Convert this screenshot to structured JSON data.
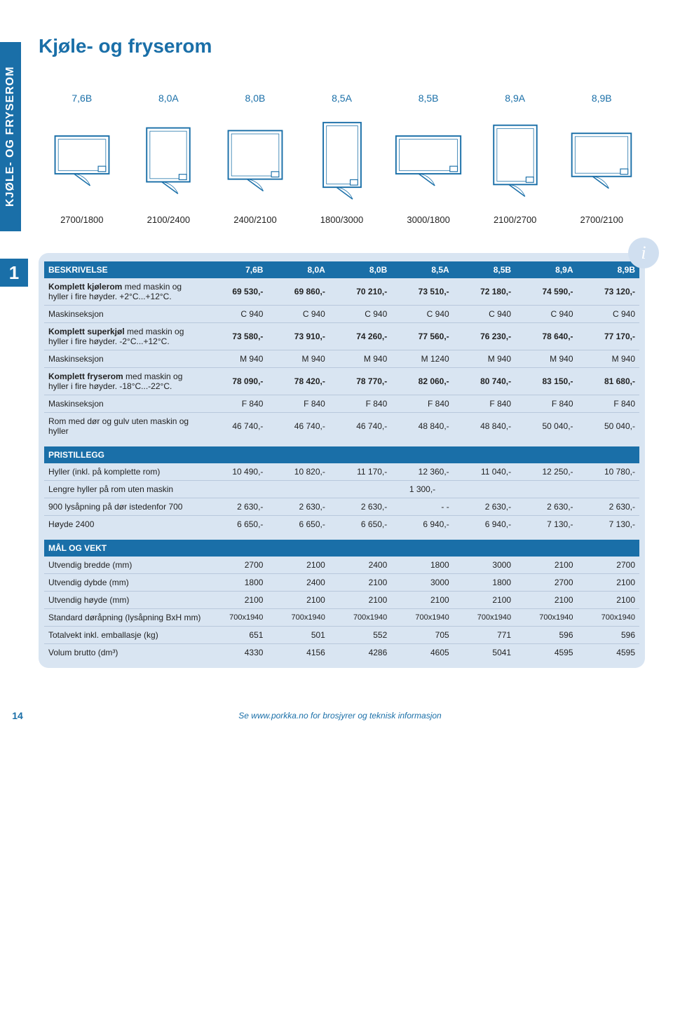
{
  "side_tab": "KJØLE- OG FRYSEROM",
  "chapter": "1",
  "title": "Kjøle- og fryserom",
  "info_badge": "i",
  "page_num": "14",
  "footer": "Se www.porkka.no for brosjyrer og teknisk informasjon",
  "colors": {
    "brand": "#1a6fa8",
    "card_bg": "#d9e5f2",
    "rule": "#b8c8dc"
  },
  "diagrams": {
    "labels": [
      "7,6B",
      "8,0A",
      "8,0B",
      "8,5A",
      "8,5B",
      "8,9A",
      "8,9B"
    ],
    "dims": [
      "2700/1800",
      "2100/2400",
      "2400/2100",
      "1800/3000",
      "3000/1800",
      "2100/2700",
      "2700/2100"
    ],
    "aspect": [
      [
        100,
        70
      ],
      [
        80,
        100
      ],
      [
        100,
        90
      ],
      [
        70,
        120
      ],
      [
        120,
        70
      ],
      [
        80,
        110
      ],
      [
        110,
        80
      ]
    ]
  },
  "sections": {
    "beskrivelse": {
      "title": "BESKRIVELSE",
      "cols": [
        "7,6B",
        "8,0A",
        "8,0B",
        "8,5A",
        "8,5B",
        "8,9A",
        "8,9B"
      ],
      "rows": [
        {
          "label": "Komplett kjølerom",
          "note": " med maskin og hyller i fire høyder. +2°C...+12°C.",
          "bold": true,
          "vals": [
            "69 530,-",
            "69 860,-",
            "70 210,-",
            "73 510,-",
            "72 180,-",
            "74 590,-",
            "73 120,-"
          ]
        },
        {
          "label": "Maskinseksjon",
          "note": "",
          "bold": false,
          "vals": [
            "C 940",
            "C 940",
            "C 940",
            "C 940",
            "C 940",
            "C 940",
            "C 940"
          ]
        },
        {
          "label": "Komplett superkjøl",
          "note": " med maskin og hyller i fire høyder. -2°C...+12°C.",
          "bold": true,
          "vals": [
            "73 580,-",
            "73 910,-",
            "74 260,-",
            "77 560,-",
            "76 230,-",
            "78 640,-",
            "77 170,-"
          ]
        },
        {
          "label": "Maskinseksjon",
          "note": "",
          "bold": false,
          "vals": [
            "M 940",
            "M 940",
            "M 940",
            "M 1240",
            "M 940",
            "M 940",
            "M 940"
          ]
        },
        {
          "label": "Komplett fryserom",
          "note": " med maskin og hyller i fire høyder. -18°C...-22°C.",
          "bold": true,
          "vals": [
            "78 090,-",
            "78 420,-",
            "78 770,-",
            "82 060,-",
            "80 740,-",
            "83 150,-",
            "81 680,-"
          ]
        },
        {
          "label": "Maskinseksjon",
          "note": "",
          "bold": false,
          "vals": [
            "F 840",
            "F 840",
            "F 840",
            "F 840",
            "F 840",
            "F 840",
            "F 840"
          ]
        },
        {
          "label": "Rom med dør og gulv uten maskin og hyller",
          "note": "",
          "bold": false,
          "vals": [
            "46 740,-",
            "46 740,-",
            "46 740,-",
            "48 840,-",
            "48 840,-",
            "50 040,-",
            "50 040,-"
          ]
        }
      ]
    },
    "pristillegg": {
      "title": "PRISTILLEGG",
      "rows": [
        {
          "label": "Hyller (inkl. på komplette rom)",
          "vals": [
            "10 490,-",
            "10 820,-",
            "11 170,-",
            "12 360,-",
            "11 040,-",
            "12 250,-",
            "10 780,-"
          ]
        },
        {
          "label": "Lengre hyller på rom uten maskin",
          "vals": [
            "",
            "",
            "",
            "1 300,-",
            "",
            "",
            ""
          ],
          "center": true
        },
        {
          "label": "900 lysåpning på dør istedenfor 700",
          "vals": [
            "2 630,-",
            "2 630,-",
            "2 630,-",
            "- -",
            "2 630,-",
            "2 630,-",
            "2 630,-"
          ]
        },
        {
          "label": "Høyde 2400",
          "vals": [
            "6 650,-",
            "6 650,-",
            "6 650,-",
            "6 940,-",
            "6 940,-",
            "7 130,-",
            "7 130,-"
          ]
        }
      ]
    },
    "mal": {
      "title": "MÅL OG VEKT",
      "rows": [
        {
          "label": "Utvendig bredde (mm)",
          "vals": [
            "2700",
            "2100",
            "2400",
            "1800",
            "3000",
            "2100",
            "2700"
          ]
        },
        {
          "label": "Utvendig dybde (mm)",
          "vals": [
            "1800",
            "2400",
            "2100",
            "3000",
            "1800",
            "2700",
            "2100"
          ]
        },
        {
          "label": "Utvendig høyde (mm)",
          "vals": [
            "2100",
            "2100",
            "2100",
            "2100",
            "2100",
            "2100",
            "2100"
          ]
        },
        {
          "label": "Standard døråpning (lysåpning BxH mm)",
          "vals": [
            "700x1940",
            "700x1940",
            "700x1940",
            "700x1940",
            "700x1940",
            "700x1940",
            "700x1940"
          ],
          "small": true
        },
        {
          "label": "Totalvekt inkl. emballasje (kg)",
          "vals": [
            "651",
            "501",
            "552",
            "705",
            "771",
            "596",
            "596"
          ]
        },
        {
          "label": "Volum brutto (dm³)",
          "vals": [
            "4330",
            "4156",
            "4286",
            "4605",
            "5041",
            "4595",
            "4595"
          ]
        }
      ]
    }
  }
}
